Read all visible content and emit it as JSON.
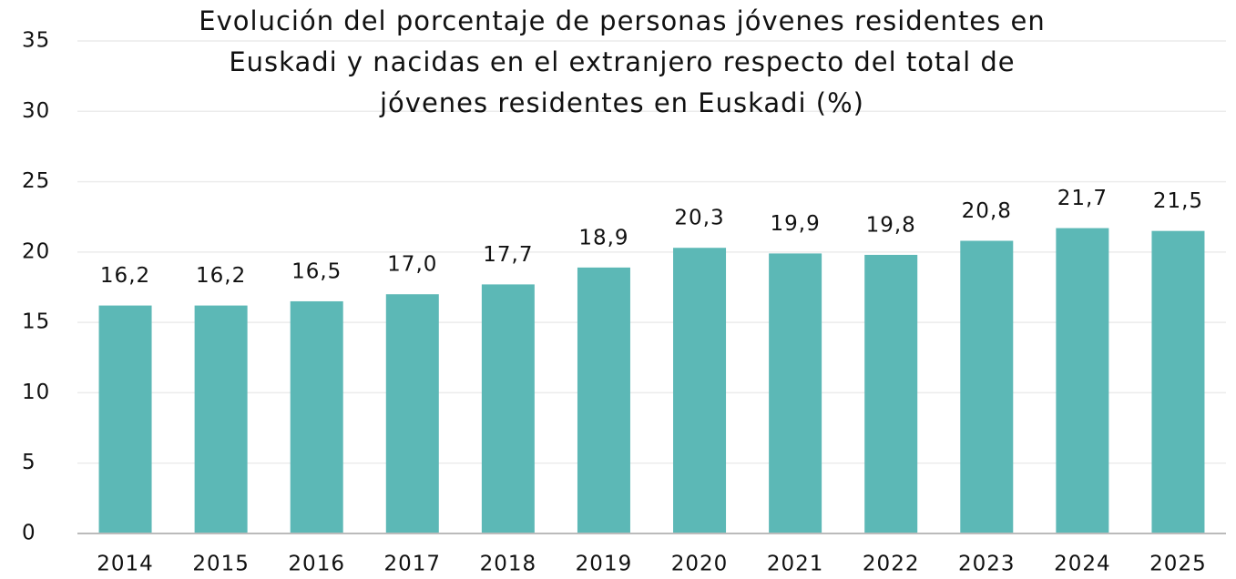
{
  "chart_data": {
    "type": "bar",
    "title": [
      "Evolución del porcentaje de personas jóvenes residentes en",
      "Euskadi y nacidas en el extranjero respecto del total de",
      "jóvenes residentes en Euskadi (%)"
    ],
    "categories": [
      "2014",
      "2015",
      "2016",
      "2017",
      "2018",
      "2019",
      "2020",
      "2021",
      "2022",
      "2023",
      "2024",
      "2025"
    ],
    "values": [
      16.2,
      16.2,
      16.5,
      17.0,
      17.7,
      18.9,
      20.3,
      19.9,
      19.8,
      20.8,
      21.7,
      21.5
    ],
    "value_labels": [
      "16,2",
      "16,2",
      "16,5",
      "17,0",
      "17,7",
      "18,9",
      "20,3",
      "19,9",
      "19,8",
      "20,8",
      "21,7",
      "21,5"
    ],
    "color": "#5cb8b6",
    "ylim": [
      0,
      35
    ],
    "yticks": [
      0,
      5,
      10,
      15,
      20,
      25,
      30,
      35
    ],
    "grid": true
  }
}
